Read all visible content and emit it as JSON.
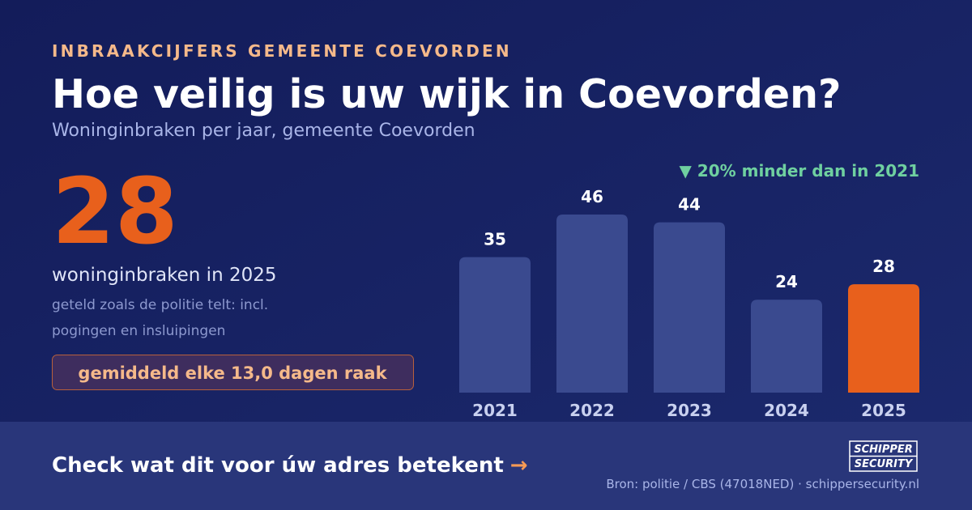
{
  "eyebrow": "INBRAAKCIJFERS GEMEENTE COEVORDEN",
  "title": "Hoe veilig is uw wijk in Coevorden?",
  "subtitle": "Woninginbraken per jaar, gemeente Coevorden",
  "stat": {
    "value": 28,
    "label": "woninginbraken in 2025",
    "notes": [
      "geteld zoals de politie telt: incl.",
      "pogingen en insluipingen"
    ],
    "badge": "gemiddeld elke 13,0 dagen raak"
  },
  "chart_data": {
    "type": "bar",
    "annotation": "▼ 20% minder dan in 2021",
    "categories": [
      "2021",
      "2022",
      "2023",
      "2024",
      "2025"
    ],
    "values": [
      35,
      46,
      44,
      24,
      28
    ],
    "colors": [
      "#3a4a8f",
      "#3a4a8f",
      "#3a4a8f",
      "#3a4a8f",
      "#e8601c"
    ]
  },
  "footer": {
    "cta": "Check wat dit voor úw adres betekent",
    "cta_arrow": "→",
    "source": "Bron: politie / CBS (47018NED) · schippersecurity.nl",
    "logo": [
      "SCHIPPER",
      "SECURITY"
    ]
  }
}
